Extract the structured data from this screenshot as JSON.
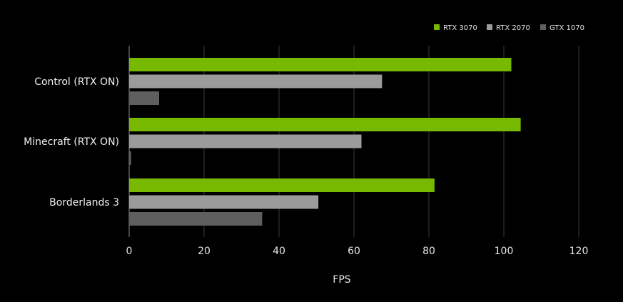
{
  "chart_data": {
    "type": "bar",
    "orientation": "horizontal",
    "categories": [
      "Control (RTX ON)",
      "Minecraft (RTX ON)",
      "Borderlands 3"
    ],
    "series": [
      {
        "name": "RTX 3070",
        "color": "#76b900",
        "values": [
          102,
          104.5,
          81.5
        ]
      },
      {
        "name": "RTX 2070",
        "color": "#9b9b9b",
        "values": [
          67.5,
          62,
          50.5
        ]
      },
      {
        "name": "GTX 1070",
        "color": "#5f5f5f",
        "values": [
          8,
          0.5,
          35.5
        ]
      }
    ],
    "xlabel": "FPS",
    "xlim": [
      0,
      120
    ],
    "xticks": [
      0,
      20,
      40,
      60,
      80,
      100,
      120
    ],
    "grid": "vertical",
    "legend_position": "top-right",
    "background": "#000000"
  }
}
